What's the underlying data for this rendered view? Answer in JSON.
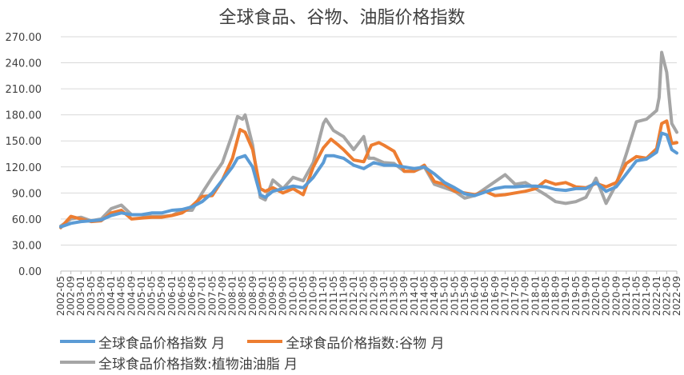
{
  "chart_data": {
    "type": "line",
    "title": "全球食品、谷物、油脂价格指数",
    "xlabel": "",
    "ylabel": "",
    "ylim": [
      0,
      270
    ],
    "y_ticks": [
      "0.00",
      "30.00",
      "60.00",
      "90.00",
      "120.00",
      "150.00",
      "180.00",
      "210.00",
      "240.00",
      "270.00"
    ],
    "x_ticks": [
      "2002-05",
      "2002-09",
      "2003-01",
      "2003-05",
      "2003-09",
      "2004-01",
      "2004-05",
      "2004-09",
      "2005-01",
      "2005-05",
      "2005-09",
      "2006-01",
      "2006-05",
      "2006-09",
      "2007-01",
      "2007-05",
      "2007-09",
      "2008-01",
      "2008-05",
      "2008-09",
      "2009-01",
      "2009-05",
      "2009-09",
      "2010-01",
      "2010-05",
      "2010-09",
      "2011-01",
      "2011-05",
      "2011-09",
      "2012-01",
      "2012-05",
      "2012-09",
      "2013-01",
      "2013-05",
      "2013-09",
      "2014-01",
      "2014-05",
      "2014-09",
      "2015-01",
      "2015-05",
      "2015-09",
      "2016-01",
      "2016-05",
      "2016-09",
      "2017-01",
      "2017-05",
      "2017-09",
      "2018-01",
      "2018-05",
      "2018-09",
      "2019-01",
      "2019-05",
      "2019-09",
      "2020-01",
      "2020-05",
      "2020-09",
      "2021-01",
      "2021-05",
      "2021-09",
      "2022-01",
      "2022-05",
      "2022-09"
    ],
    "grid": true,
    "legend_position": "bottom",
    "series": [
      {
        "name": "全球食品价格指数 月",
        "color": "#5B9BD5",
        "points": [
          [
            "2002-05",
            51
          ],
          [
            "2002-09",
            55
          ],
          [
            "2003-01",
            57
          ],
          [
            "2003-05",
            58
          ],
          [
            "2003-09",
            59
          ],
          [
            "2004-01",
            64
          ],
          [
            "2004-05",
            67
          ],
          [
            "2004-09",
            65
          ],
          [
            "2005-01",
            65
          ],
          [
            "2005-05",
            67
          ],
          [
            "2005-09",
            67
          ],
          [
            "2006-01",
            70
          ],
          [
            "2006-05",
            71
          ],
          [
            "2006-09",
            74
          ],
          [
            "2007-01",
            80
          ],
          [
            "2007-05",
            90
          ],
          [
            "2007-09",
            105
          ],
          [
            "2008-01",
            120
          ],
          [
            "2008-03",
            130
          ],
          [
            "2008-06",
            133
          ],
          [
            "2008-09",
            120
          ],
          [
            "2008-12",
            88
          ],
          [
            "2009-02",
            85
          ],
          [
            "2009-05",
            92
          ],
          [
            "2009-09",
            95
          ],
          [
            "2010-01",
            98
          ],
          [
            "2010-05",
            96
          ],
          [
            "2010-09",
            108
          ],
          [
            "2011-01",
            125
          ],
          [
            "2011-02",
            133
          ],
          [
            "2011-05",
            133
          ],
          [
            "2011-09",
            130
          ],
          [
            "2012-01",
            122
          ],
          [
            "2012-05",
            118
          ],
          [
            "2012-09",
            125
          ],
          [
            "2013-01",
            122
          ],
          [
            "2013-05",
            122
          ],
          [
            "2013-09",
            120
          ],
          [
            "2014-01",
            118
          ],
          [
            "2014-05",
            120
          ],
          [
            "2014-09",
            112
          ],
          [
            "2015-01",
            102
          ],
          [
            "2015-05",
            96
          ],
          [
            "2015-09",
            89
          ],
          [
            "2016-01",
            87
          ],
          [
            "2016-05",
            91
          ],
          [
            "2016-09",
            95
          ],
          [
            "2017-01",
            97
          ],
          [
            "2017-05",
            97
          ],
          [
            "2017-09",
            98
          ],
          [
            "2018-01",
            98
          ],
          [
            "2018-05",
            97
          ],
          [
            "2018-09",
            94
          ],
          [
            "2019-01",
            93
          ],
          [
            "2019-05",
            95
          ],
          [
            "2019-09",
            95
          ],
          [
            "2020-01",
            102
          ],
          [
            "2020-05",
            92
          ],
          [
            "2020-09",
            97
          ],
          [
            "2021-01",
            112
          ],
          [
            "2021-05",
            127
          ],
          [
            "2021-09",
            129
          ],
          [
            "2022-01",
            137
          ],
          [
            "2022-03",
            159
          ],
          [
            "2022-05",
            157
          ],
          [
            "2022-07",
            140
          ],
          [
            "2022-09",
            136
          ]
        ]
      },
      {
        "name": "全球食品价格指数:谷物 月",
        "color": "#ED7D31",
        "points": [
          [
            "2002-05",
            50
          ],
          [
            "2002-09",
            63
          ],
          [
            "2003-01",
            60
          ],
          [
            "2003-05",
            57
          ],
          [
            "2003-09",
            58
          ],
          [
            "2004-01",
            67
          ],
          [
            "2004-05",
            70
          ],
          [
            "2004-09",
            60
          ],
          [
            "2005-01",
            61
          ],
          [
            "2005-05",
            62
          ],
          [
            "2005-09",
            62
          ],
          [
            "2006-01",
            64
          ],
          [
            "2006-05",
            67
          ],
          [
            "2006-09",
            75
          ],
          [
            "2007-01",
            86
          ],
          [
            "2007-05",
            87
          ],
          [
            "2007-09",
            105
          ],
          [
            "2008-01",
            130
          ],
          [
            "2008-04",
            163
          ],
          [
            "2008-06",
            160
          ],
          [
            "2008-09",
            140
          ],
          [
            "2008-12",
            95
          ],
          [
            "2009-02",
            92
          ],
          [
            "2009-05",
            96
          ],
          [
            "2009-09",
            90
          ],
          [
            "2010-01",
            95
          ],
          [
            "2010-05",
            88
          ],
          [
            "2010-09",
            120
          ],
          [
            "2011-01",
            142
          ],
          [
            "2011-04",
            152
          ],
          [
            "2011-07",
            145
          ],
          [
            "2011-09",
            140
          ],
          [
            "2012-01",
            128
          ],
          [
            "2012-05",
            126
          ],
          [
            "2012-08",
            145
          ],
          [
            "2012-11",
            148
          ],
          [
            "2013-01",
            145
          ],
          [
            "2013-05",
            138
          ],
          [
            "2013-09",
            115
          ],
          [
            "2014-01",
            115
          ],
          [
            "2014-05",
            122
          ],
          [
            "2014-09",
            103
          ],
          [
            "2015-01",
            100
          ],
          [
            "2015-05",
            92
          ],
          [
            "2015-09",
            90
          ],
          [
            "2016-01",
            88
          ],
          [
            "2016-05",
            92
          ],
          [
            "2016-09",
            87
          ],
          [
            "2017-01",
            88
          ],
          [
            "2017-05",
            90
          ],
          [
            "2017-09",
            92
          ],
          [
            "2018-01",
            95
          ],
          [
            "2018-05",
            104
          ],
          [
            "2018-09",
            100
          ],
          [
            "2019-01",
            102
          ],
          [
            "2019-05",
            97
          ],
          [
            "2019-09",
            96
          ],
          [
            "2020-01",
            101
          ],
          [
            "2020-05",
            97
          ],
          [
            "2020-09",
            102
          ],
          [
            "2021-01",
            124
          ],
          [
            "2021-05",
            132
          ],
          [
            "2021-09",
            130
          ],
          [
            "2022-01",
            141
          ],
          [
            "2022-03",
            170
          ],
          [
            "2022-05",
            173
          ],
          [
            "2022-07",
            147
          ],
          [
            "2022-09",
            148
          ]
        ]
      },
      {
        "name": "全球食品价格指数:植物油油脂 月",
        "color": "#A5A5A5",
        "points": [
          [
            "2002-05",
            52
          ],
          [
            "2002-09",
            60
          ],
          [
            "2003-01",
            62
          ],
          [
            "2003-05",
            58
          ],
          [
            "2003-09",
            60
          ],
          [
            "2004-01",
            72
          ],
          [
            "2004-05",
            76
          ],
          [
            "2004-09",
            65
          ],
          [
            "2005-01",
            65
          ],
          [
            "2005-05",
            63
          ],
          [
            "2005-09",
            63
          ],
          [
            "2006-01",
            64
          ],
          [
            "2006-05",
            70
          ],
          [
            "2006-09",
            70
          ],
          [
            "2007-01",
            90
          ],
          [
            "2007-05",
            108
          ],
          [
            "2007-09",
            125
          ],
          [
            "2008-01",
            158
          ],
          [
            "2008-03",
            178
          ],
          [
            "2008-05",
            175
          ],
          [
            "2008-06",
            180
          ],
          [
            "2008-09",
            145
          ],
          [
            "2008-12",
            85
          ],
          [
            "2009-02",
            82
          ],
          [
            "2009-05",
            105
          ],
          [
            "2009-09",
            95
          ],
          [
            "2010-01",
            108
          ],
          [
            "2010-05",
            104
          ],
          [
            "2010-09",
            125
          ],
          [
            "2011-01",
            170
          ],
          [
            "2011-02",
            175
          ],
          [
            "2011-05",
            162
          ],
          [
            "2011-09",
            155
          ],
          [
            "2012-01",
            140
          ],
          [
            "2012-05",
            155
          ],
          [
            "2012-07",
            130
          ],
          [
            "2012-09",
            130
          ],
          [
            "2013-01",
            125
          ],
          [
            "2013-05",
            124
          ],
          [
            "2013-09",
            115
          ],
          [
            "2014-01",
            115
          ],
          [
            "2014-05",
            120
          ],
          [
            "2014-09",
            100
          ],
          [
            "2015-01",
            96
          ],
          [
            "2015-05",
            92
          ],
          [
            "2015-09",
            84
          ],
          [
            "2016-01",
            87
          ],
          [
            "2016-05",
            95
          ],
          [
            "2016-09",
            103
          ],
          [
            "2017-01",
            111
          ],
          [
            "2017-05",
            100
          ],
          [
            "2017-09",
            102
          ],
          [
            "2018-01",
            95
          ],
          [
            "2018-05",
            88
          ],
          [
            "2018-09",
            80
          ],
          [
            "2019-01",
            78
          ],
          [
            "2019-05",
            80
          ],
          [
            "2019-09",
            85
          ],
          [
            "2020-01",
            107
          ],
          [
            "2020-05",
            78
          ],
          [
            "2020-09",
            100
          ],
          [
            "2021-01",
            135
          ],
          [
            "2021-05",
            172
          ],
          [
            "2021-09",
            175
          ],
          [
            "2022-01",
            185
          ],
          [
            "2022-02",
            200
          ],
          [
            "2022-03",
            252
          ],
          [
            "2022-05",
            229
          ],
          [
            "2022-07",
            170
          ],
          [
            "2022-09",
            160
          ]
        ]
      }
    ]
  }
}
